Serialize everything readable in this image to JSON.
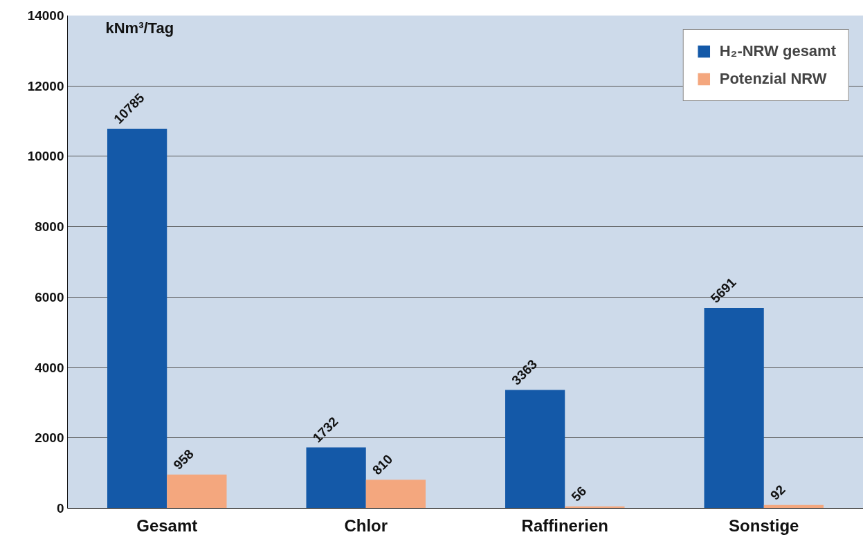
{
  "chart_data": {
    "type": "bar",
    "ylabel": "kNm³/Tag",
    "categories": [
      "Gesamt",
      "Chlor",
      "Raffinerien",
      "Sonstige"
    ],
    "series": [
      {
        "name": "H₂-NRW gesamt",
        "color": "#1459a8",
        "values": [
          10785,
          1732,
          3363,
          5691
        ]
      },
      {
        "name": "Potenzial NRW",
        "color": "#f4a77e",
        "values": [
          958,
          810,
          56,
          92
        ]
      }
    ],
    "ylim": [
      0,
      14000
    ],
    "yticks": [
      0,
      2000,
      4000,
      6000,
      8000,
      10000,
      12000,
      14000
    ],
    "grid": "y",
    "legend": "top right",
    "data_labels": true
  }
}
